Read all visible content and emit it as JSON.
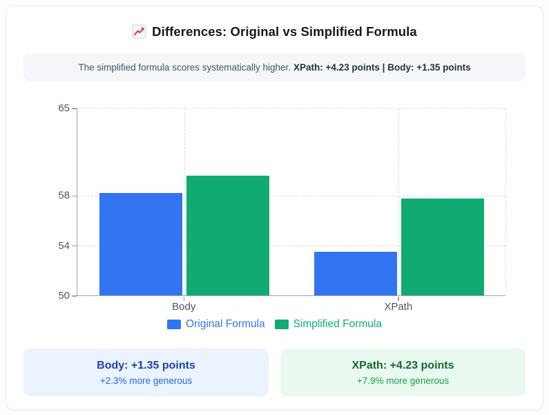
{
  "title": {
    "icon": "chart-increasing",
    "text": "Differences: Original vs Simplified Formula"
  },
  "subtitle": {
    "normal": "The simplified formula scores systematically higher.",
    "bold": "XPath: +4.23 points | Body: +1.35 points"
  },
  "chart_data": {
    "type": "bar",
    "categories": [
      "Body",
      "XPath"
    ],
    "series": [
      {
        "name": "Original Formula",
        "color": "#3374f1",
        "values": [
          58.2,
          53.5
        ]
      },
      {
        "name": "Simplified Formula",
        "color": "#12aa73",
        "values": [
          59.55,
          57.73
        ]
      }
    ],
    "title": "Differences: Original vs Simplified Formula",
    "xlabel": "",
    "ylabel": "",
    "ylim": [
      50,
      65
    ],
    "yticks": [
      50,
      54,
      58,
      65
    ],
    "grid": "dashed",
    "legend_position": "bottom"
  },
  "colors": {
    "axis": "#99a2ac",
    "gridline": "#d8dbdf",
    "tick_text": "#4b5563"
  },
  "summary_cards": [
    {
      "title": "Body: +1.35 points",
      "subtitle": "+2.3% more generous",
      "bg": "#ebf3fe",
      "title_color": "#1e40af",
      "subtitle_color": "#2563eb"
    },
    {
      "title": "XPath: +4.23 points",
      "subtitle": "+7.9% more generous",
      "bg": "#e9f9ef",
      "title_color": "#166534",
      "subtitle_color": "#16a34a"
    }
  ]
}
